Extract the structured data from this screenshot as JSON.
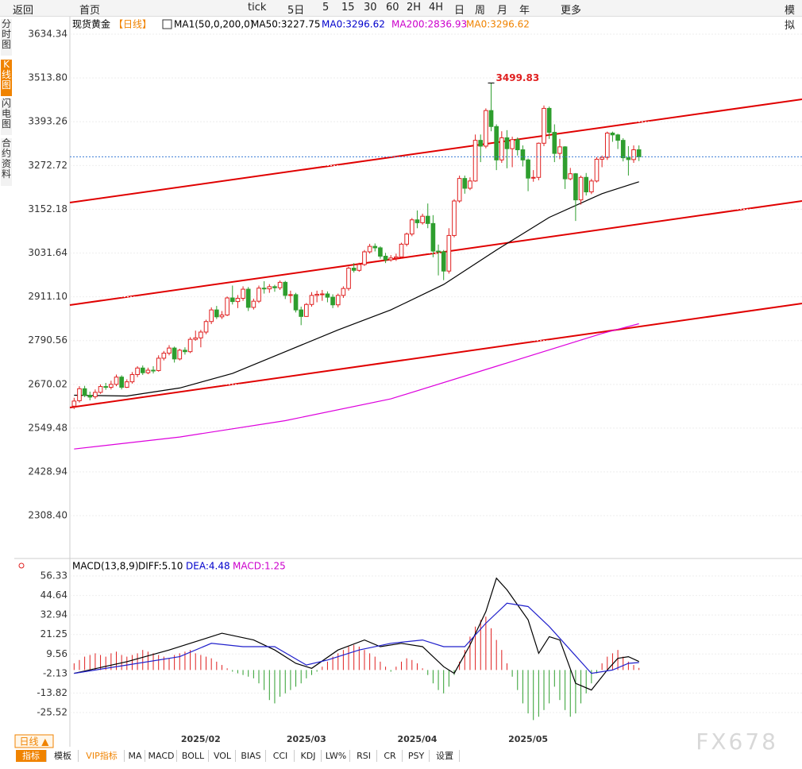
{
  "toolbar": [
    "返回",
    "首页",
    "tick",
    "5日",
    "5",
    "15",
    "30",
    "60",
    "2H",
    "4H",
    "日",
    "周",
    "月",
    "年",
    "更多",
    "模拟"
  ],
  "side_tabs": [
    "分时图",
    "K线图",
    "闪电图",
    "合约资料"
  ],
  "period_selector": "日线 ▲",
  "bottom_tabs": [
    "指标",
    "模板",
    "VIP指标",
    "MA",
    "MACD",
    "BOLL",
    "VOL",
    "BIAS",
    "CCI",
    "KDJ",
    "LW%",
    "RSI",
    "CR",
    "PSY",
    "设置"
  ],
  "watermark": "FX678",
  "chart_data": [
    {
      "type": "candlestick",
      "legend": [
        {
          "text": "现货黄金",
          "color": "#000000"
        },
        {
          "text": "【日线】",
          "color": "#f08300"
        },
        {
          "text": "MA1(50,0,200,0)",
          "color": "#000000"
        },
        {
          "text": "MA50:3227.75",
          "color": "#000000"
        },
        {
          "text": "MA0:3296.62",
          "color": "#0000cc"
        },
        {
          "text": "MA200:2836.93",
          "color": "#cc00cc"
        },
        {
          "text": "MA0:3296.62",
          "color": "#f08300"
        }
      ],
      "peak_label": "3499.83",
      "up_color": "#e02020",
      "down_color": "#2e9e2e",
      "ylim": [
        2197.1,
        3662.8
      ],
      "yticks": [
        3634.34,
        {
          "value": 3513.8,
          "label": "3513.80"
        },
        {
          "value": 3393.26,
          "label": "3393.26"
        },
        {
          "value": 3272.72,
          "label": "3272.72"
        },
        3152.18,
        3031.64,
        {
          "value": 2911.1,
          "label": "2911.10"
        },
        2790.56,
        2670.02,
        2549.48,
        2428.94,
        {
          "value": 2308.4,
          "label": "2308.40"
        }
      ],
      "xticks": [
        {
          "value": 24,
          "label": "2025/02"
        },
        {
          "value": 44,
          "label": "2025/03"
        },
        {
          "value": 65,
          "label": "2025/04"
        },
        {
          "value": 86,
          "label": "2025/05"
        }
      ],
      "ohlc": [
        [
          2610,
          2633,
          2602,
          2624
        ],
        [
          2625,
          2665,
          2620,
          2658
        ],
        [
          2658,
          2666,
          2635,
          2640
        ],
        [
          2640,
          2650,
          2626,
          2635
        ],
        [
          2636,
          2656,
          2630,
          2648
        ],
        [
          2648,
          2670,
          2644,
          2664
        ],
        [
          2664,
          2674,
          2655,
          2662
        ],
        [
          2662,
          2680,
          2656,
          2670
        ],
        [
          2670,
          2697,
          2665,
          2690
        ],
        [
          2690,
          2695,
          2656,
          2662
        ],
        [
          2662,
          2684,
          2660,
          2677
        ],
        [
          2677,
          2704,
          2672,
          2697
        ],
        [
          2697,
          2720,
          2690,
          2715
        ],
        [
          2715,
          2722,
          2696,
          2702
        ],
        [
          2702,
          2716,
          2698,
          2709
        ],
        [
          2709,
          2720,
          2700,
          2708
        ],
        [
          2708,
          2750,
          2705,
          2742
        ],
        [
          2742,
          2762,
          2736,
          2756
        ],
        [
          2756,
          2778,
          2750,
          2770
        ],
        [
          2770,
          2774,
          2730,
          2740
        ],
        [
          2740,
          2768,
          2736,
          2764
        ],
        [
          2764,
          2772,
          2752,
          2760
        ],
        [
          2760,
          2800,
          2756,
          2794
        ],
        [
          2794,
          2818,
          2790,
          2798
        ],
        [
          2798,
          2820,
          2772,
          2814
        ],
        [
          2814,
          2848,
          2808,
          2843
        ],
        [
          2843,
          2882,
          2836,
          2875
        ],
        [
          2875,
          2886,
          2850,
          2856
        ],
        [
          2856,
          2872,
          2850,
          2861
        ],
        [
          2861,
          2912,
          2858,
          2908
        ],
        [
          2908,
          2942,
          2890,
          2898
        ],
        [
          2898,
          2916,
          2880,
          2907
        ],
        [
          2907,
          2940,
          2900,
          2932
        ],
        [
          2932,
          2938,
          2872,
          2882
        ],
        [
          2882,
          2906,
          2876,
          2899
        ],
        [
          2899,
          2942,
          2894,
          2935
        ],
        [
          2935,
          2954,
          2920,
          2933
        ],
        [
          2933,
          2946,
          2922,
          2939
        ],
        [
          2939,
          2944,
          2925,
          2936
        ],
        [
          2936,
          2956,
          2930,
          2951
        ],
        [
          2951,
          2955,
          2905,
          2915
        ],
        [
          2915,
          2928,
          2894,
          2917
        ],
        [
          2917,
          2922,
          2868,
          2875
        ],
        [
          2875,
          2884,
          2833,
          2857
        ],
        [
          2857,
          2894,
          2856,
          2890
        ],
        [
          2890,
          2924,
          2884,
          2915
        ],
        [
          2915,
          2928,
          2896,
          2918
        ],
        [
          2918,
          2930,
          2900,
          2919
        ],
        [
          2919,
          2926,
          2896,
          2910
        ],
        [
          2910,
          2918,
          2880,
          2889
        ],
        [
          2889,
          2920,
          2882,
          2915
        ],
        [
          2915,
          2940,
          2908,
          2934
        ],
        [
          2934,
          2994,
          2928,
          2990
        ],
        [
          2990,
          3004,
          2978,
          2984
        ],
        [
          2984,
          3005,
          2980,
          3000
        ],
        [
          3000,
          3040,
          2996,
          3035
        ],
        [
          3035,
          3057,
          3030,
          3050
        ],
        [
          3050,
          3058,
          3036,
          3046
        ],
        [
          3046,
          3050,
          3016,
          3023
        ],
        [
          3023,
          3032,
          3004,
          3013
        ],
        [
          3013,
          3026,
          3008,
          3018
        ],
        [
          3018,
          3030,
          3010,
          3021
        ],
        [
          3021,
          3060,
          3016,
          3056
        ],
        [
          3056,
          3088,
          3050,
          3084
        ],
        [
          3084,
          3128,
          3078,
          3123
        ],
        [
          3123,
          3149,
          3100,
          3115
        ],
        [
          3115,
          3140,
          3110,
          3133
        ],
        [
          3133,
          3168,
          3100,
          3113
        ],
        [
          3113,
          3136,
          3020,
          3037
        ],
        [
          3037,
          3055,
          2970,
          3035
        ],
        [
          3035,
          3040,
          2957,
          2982
        ],
        [
          2982,
          3100,
          2975,
          3080
        ],
        [
          3080,
          3180,
          3075,
          3175
        ],
        [
          3175,
          3245,
          3170,
          3237
        ],
        [
          3237,
          3245,
          3195,
          3210
        ],
        [
          3210,
          3240,
          3205,
          3230
        ],
        [
          3230,
          3358,
          3228,
          3342
        ],
        [
          3342,
          3358,
          3282,
          3326
        ],
        [
          3326,
          3430,
          3320,
          3424
        ],
        [
          3424,
          3499.83,
          3367,
          3380
        ],
        [
          3380,
          3386,
          3260,
          3288
        ],
        [
          3288,
          3367,
          3280,
          3349
        ],
        [
          3349,
          3370,
          3265,
          3319
        ],
        [
          3319,
          3352,
          3268,
          3344
        ],
        [
          3344,
          3350,
          3300,
          3316
        ],
        [
          3316,
          3328,
          3270,
          3288
        ],
        [
          3288,
          3292,
          3202,
          3238
        ],
        [
          3238,
          3260,
          3228,
          3240
        ],
        [
          3240,
          3336,
          3232,
          3334
        ],
        [
          3334,
          3438,
          3326,
          3430
        ],
        [
          3430,
          3435,
          3346,
          3364
        ],
        [
          3364,
          3386,
          3282,
          3306
        ],
        [
          3306,
          3346,
          3290,
          3324
        ],
        [
          3324,
          3326,
          3208,
          3236
        ],
        [
          3236,
          3266,
          3232,
          3250
        ],
        [
          3250,
          3252,
          3120,
          3178
        ],
        [
          3178,
          3245,
          3165,
          3240
        ],
        [
          3240,
          3252,
          3190,
          3200
        ],
        [
          3200,
          3236,
          3194,
          3230
        ],
        [
          3230,
          3296,
          3226,
          3290
        ],
        [
          3290,
          3300,
          3268,
          3295
        ],
        [
          3295,
          3366,
          3288,
          3362
        ],
        [
          3362,
          3366,
          3338,
          3357
        ],
        [
          3357,
          3360,
          3318,
          3342
        ],
        [
          3342,
          3348,
          3284,
          3294
        ],
        [
          3294,
          3326,
          3245,
          3289
        ],
        [
          3289,
          3328,
          3280,
          3316
        ],
        [
          3316,
          3328,
          3285,
          3296.62
        ]
      ],
      "lines": [
        {
          "color": "#000000",
          "x": [
            0,
            10,
            20,
            30,
            40,
            50,
            60,
            70,
            80,
            90,
            100,
            107
          ],
          "values": [
            2640,
            2638,
            2660,
            2700,
            2760,
            2820,
            2875,
            2945,
            3040,
            3130,
            3195,
            3228
          ]
        },
        {
          "color": "#dd00dd",
          "x": [
            0,
            20,
            40,
            60,
            80,
            100,
            107
          ],
          "values": [
            2492,
            2525,
            2570,
            2630,
            2720,
            2810,
            2837
          ]
        }
      ]
    },
    {
      "type": "macd",
      "legend": [
        {
          "text": "MACD(13,8,9)",
          "color": "#000000"
        },
        {
          "text": "DIFF:5.10",
          "color": "#000000"
        },
        {
          "text": "DEA:4.48",
          "color": "#0000cc"
        },
        {
          "text": "MACD:1.25",
          "color": "#cc00cc"
        }
      ],
      "up_color": "#e02020",
      "down_color": "#2e9e2e",
      "ylim": [
        -38.84,
        65.85
      ],
      "yticks": [
        56.33,
        44.64,
        32.94,
        21.25,
        9.56,
        -2.13,
        -13.82,
        -25.52
      ],
      "histogram": [
        4,
        6,
        8,
        9,
        10,
        9,
        8,
        10,
        11,
        9,
        8,
        9,
        10,
        12,
        11,
        10,
        9,
        8,
        7,
        9,
        10,
        11,
        12,
        10,
        9,
        8,
        7,
        5,
        3,
        1,
        -1,
        -2,
        -3,
        -4,
        -5,
        -8,
        -12,
        -18,
        -20,
        -16,
        -14,
        -12,
        -10,
        -8,
        -5,
        -3,
        -1,
        2,
        5,
        8,
        10,
        12,
        14,
        15,
        14,
        12,
        10,
        8,
        5,
        2,
        -1,
        2,
        5,
        7,
        6,
        4,
        1,
        -3,
        -8,
        -12,
        -14,
        -10,
        -3,
        5,
        12,
        20,
        26,
        30,
        32,
        25,
        18,
        12,
        4,
        -4,
        -12,
        -20,
        -26,
        -30,
        -28,
        -24,
        -20,
        -10,
        -18,
        -24,
        -28,
        -26,
        -20,
        -14,
        -8,
        -2,
        4,
        8,
        10,
        12,
        8,
        5,
        3,
        1.25
      ],
      "lines": [
        {
          "color": "#000000",
          "x": [
            0,
            10,
            18,
            24,
            28,
            34,
            38,
            42,
            45,
            50,
            55,
            58,
            62,
            66,
            70,
            72,
            75,
            78,
            80,
            82,
            86,
            88,
            90,
            92,
            95,
            98,
            101,
            103,
            105,
            107
          ],
          "values": [
            -2,
            5,
            12,
            18,
            22,
            18,
            12,
            4,
            1,
            12,
            18,
            14,
            16,
            14,
            2,
            -2,
            15,
            35,
            55,
            48,
            30,
            10,
            20,
            18,
            -8,
            -12,
            0,
            7,
            8,
            5.1
          ]
        },
        {
          "color": "#2020cc",
          "x": [
            0,
            10,
            20,
            26,
            32,
            38,
            44,
            48,
            54,
            60,
            66,
            70,
            74,
            78,
            82,
            86,
            90,
            94,
            98,
            102,
            105,
            107
          ],
          "values": [
            -2,
            3,
            8,
            16,
            14,
            14,
            3,
            6,
            12,
            16,
            18,
            14,
            14,
            28,
            40,
            38,
            26,
            12,
            -2,
            0,
            4,
            4.48
          ]
        }
      ]
    }
  ]
}
